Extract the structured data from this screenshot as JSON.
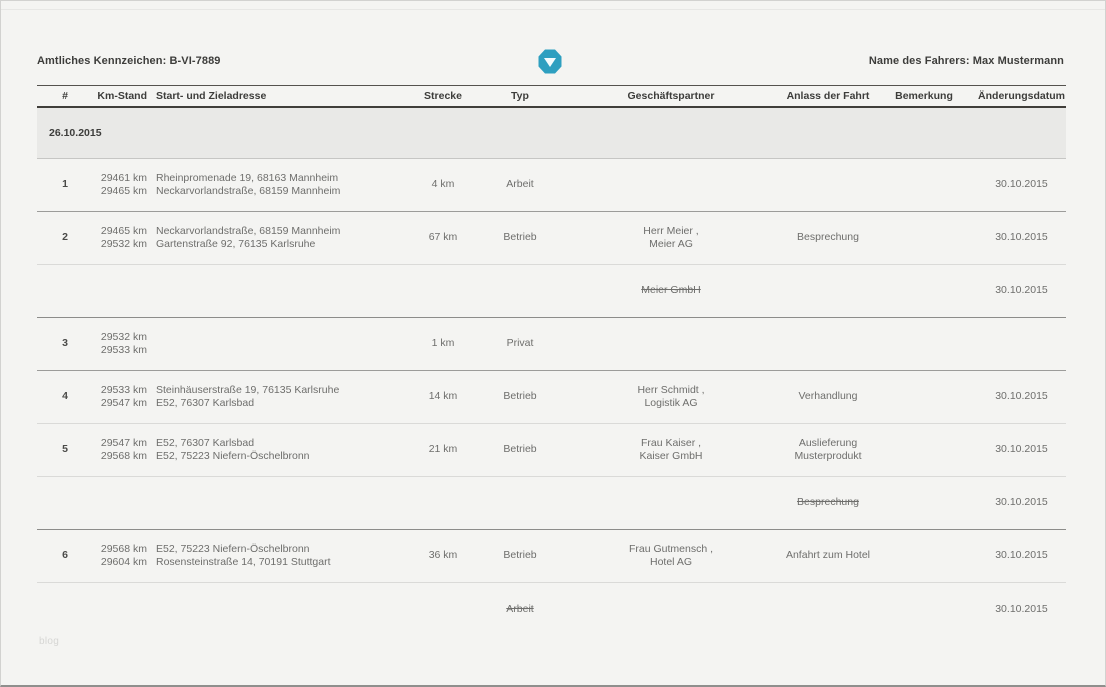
{
  "page": {
    "license_label": "Amtliches Kennzeichen: B-VI-7889",
    "driver_label": "Name des Fahrers: Max Mustermann",
    "watermark": "blog",
    "accent_color": "#2e9fc0"
  },
  "table": {
    "columns": {
      "num": "#",
      "km": "Km-Stand",
      "addr": "Start- und Zieladresse",
      "strecke": "Strecke",
      "typ": "Typ",
      "partner": "Geschäftspartner",
      "anlass": "Anlass der Fahrt",
      "bemerkung": "Bemerkung",
      "datum": "Änderungsdatum"
    },
    "date_group": "26.10.2015",
    "rows": [
      {
        "num": "1",
        "km1": "29461 km",
        "km2": "29465 km",
        "addr1": "Rheinpromenade 19, 68163 Mannheim",
        "addr2": "Neckarvorlandstraße, 68159 Mannheim",
        "strecke": "4 km",
        "typ": "Arbeit",
        "partner1": "",
        "partner2": "",
        "anlass1": "",
        "anlass2": "",
        "bemerkung": "",
        "datum": "30.10.2015"
      },
      {
        "num": "2",
        "km1": "29465 km",
        "km2": "29532 km",
        "addr1": "Neckarvorlandstraße, 68159 Mannheim",
        "addr2": "Gartenstraße 92, 76135 Karlsruhe",
        "strecke": "67 km",
        "typ": "Betrieb",
        "partner1": "Herr Meier ,",
        "partner2": "Meier AG",
        "anlass1": "Besprechung",
        "anlass2": "",
        "bemerkung": "",
        "datum": "30.10.2015"
      },
      {
        "type": "amendment",
        "struck_field": "partner",
        "struck_text": "Meier GmbH",
        "datum": "30.10.2015"
      },
      {
        "num": "3",
        "km1": "29532 km",
        "km2": "29533 km",
        "addr1": "",
        "addr2": "",
        "strecke": "1 km",
        "typ": "Privat",
        "partner1": "",
        "partner2": "",
        "anlass1": "",
        "anlass2": "",
        "bemerkung": "",
        "datum": ""
      },
      {
        "num": "4",
        "km1": "29533 km",
        "km2": "29547 km",
        "addr1": "Steinhäuserstraße 19, 76135 Karlsruhe",
        "addr2": "E52, 76307 Karlsbad",
        "strecke": "14 km",
        "typ": "Betrieb",
        "partner1": "Herr Schmidt ,",
        "partner2": "Logistik AG",
        "anlass1": "Verhandlung",
        "anlass2": "",
        "bemerkung": "",
        "datum": "30.10.2015"
      },
      {
        "num": "5",
        "km1": "29547 km",
        "km2": "29568 km",
        "addr1": "E52, 76307 Karlsbad",
        "addr2": "E52, 75223 Niefern-Öschelbronn",
        "strecke": "21 km",
        "typ": "Betrieb",
        "partner1": "Frau Kaiser ,",
        "partner2": "Kaiser GmbH",
        "anlass1": "Auslieferung",
        "anlass2": "Musterprodukt",
        "bemerkung": "",
        "datum": "30.10.2015"
      },
      {
        "type": "amendment",
        "struck_field": "anlass",
        "struck_text": "Besprechung",
        "datum": "30.10.2015"
      },
      {
        "num": "6",
        "km1": "29568 km",
        "km2": "29604 km",
        "addr1": "E52, 75223 Niefern-Öschelbronn",
        "addr2": "Rosensteinstraße 14, 70191 Stuttgart",
        "strecke": "36 km",
        "typ": "Betrieb",
        "partner1": "Frau Gutmensch ,",
        "partner2": "Hotel AG",
        "anlass1": "Anfahrt zum Hotel",
        "anlass2": "",
        "bemerkung": "",
        "datum": "30.10.2015"
      },
      {
        "type": "amendment",
        "struck_field": "typ",
        "struck_text": "Arbeit",
        "datum": "30.10.2015"
      }
    ]
  }
}
